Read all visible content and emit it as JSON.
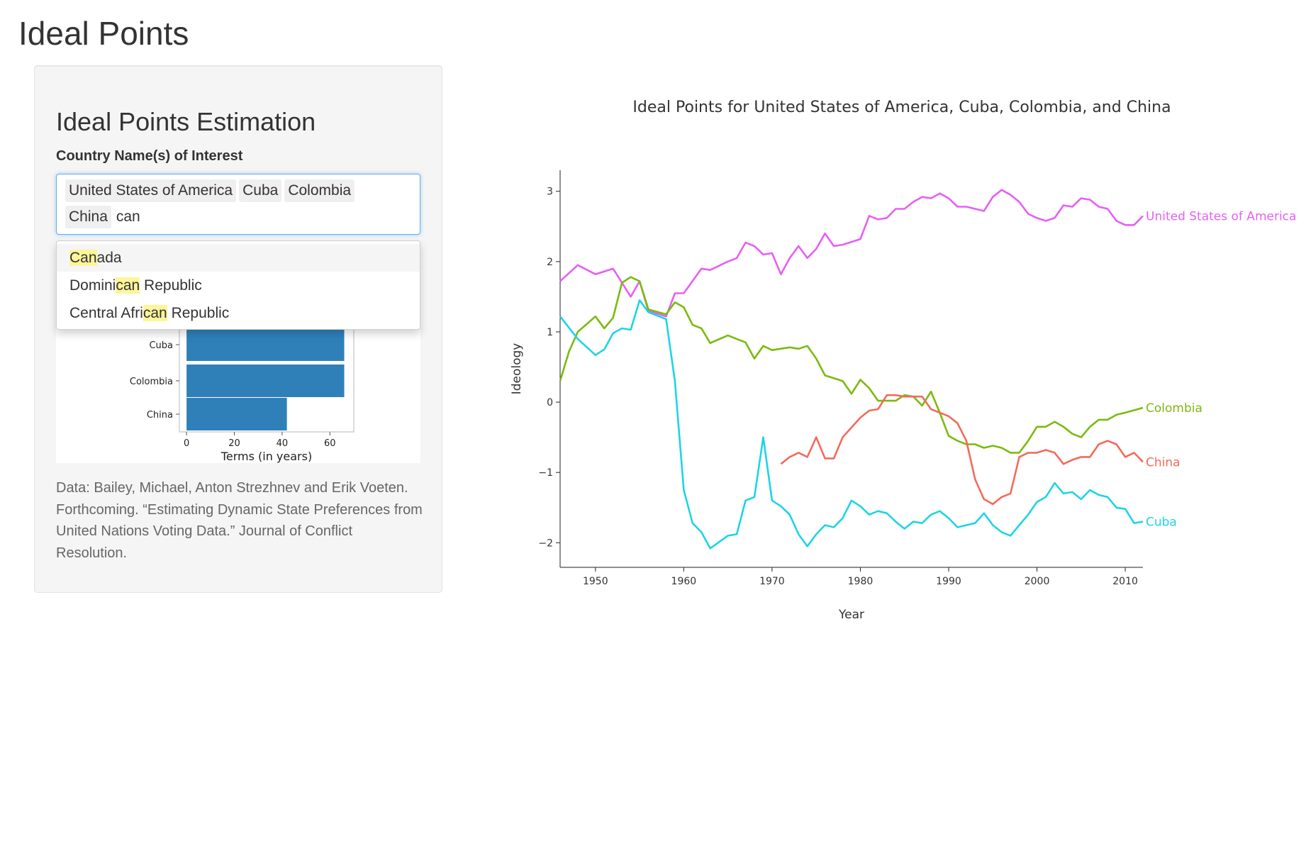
{
  "app": {
    "title": "Ideal Points"
  },
  "sidebar": {
    "title": "Ideal Points Estimation",
    "field_label": "Country Name(s) of Interest",
    "selected": [
      "United States of America",
      "Cuba",
      "Colombia",
      "China"
    ],
    "typed": "can",
    "suggestions": [
      {
        "pre": "",
        "match": "Can",
        "post": "ada"
      },
      {
        "pre": "Domini",
        "match": "can",
        "post": " Republic"
      },
      {
        "pre": "Central Afri",
        "match": "can",
        "post": " Republic"
      }
    ],
    "bar_chart": {
      "categories": [
        "Cuba",
        "Colombia",
        "China"
      ],
      "values": [
        66,
        66,
        42
      ],
      "xlim": [
        -3,
        70
      ],
      "xticks": [
        "0",
        "20",
        "40",
        "60"
      ],
      "xlabel": "Terms (in years)"
    },
    "source": "Data: Bailey, Michael, Anton Strezhnev and Erik Voeten. Forthcoming. “Estimating Dynamic State Preferences from United Nations Voting Data.” Journal of Conflict Resolution."
  },
  "chart_data": {
    "type": "line",
    "title": "Ideal Points for United States of America, Cuba, Colombia, and China",
    "xlabel": "Year",
    "ylabel": "Ideology",
    "xlim": [
      1946,
      2012
    ],
    "ylim": [
      -2.35,
      3.3
    ],
    "xticks": [
      "1950",
      "1960",
      "1970",
      "1980",
      "1990",
      "2000",
      "2010"
    ],
    "yticks": [
      "3",
      "2",
      "1",
      "0",
      "−1",
      "−2"
    ],
    "series": [
      {
        "name": "United States of America",
        "color": "#e75ff5",
        "x": [
          1946,
          1948,
          1950,
          1951,
          1952,
          1954,
          1955,
          1956,
          1958,
          1959,
          1960,
          1962,
          1963,
          1965,
          1966,
          1967,
          1968,
          1969,
          1970,
          1971,
          1972,
          1973,
          1974,
          1975,
          1976,
          1977,
          1978,
          1980,
          1981,
          1982,
          1983,
          1984,
          1985,
          1986,
          1987,
          1988,
          1989,
          1990,
          1991,
          1992,
          1993,
          1994,
          1995,
          1996,
          1997,
          1998,
          1999,
          2000,
          2001,
          2002,
          2003,
          2004,
          2005,
          2006,
          2007,
          2008,
          2009,
          2010,
          2011,
          2012
        ],
        "y": [
          1.72,
          1.95,
          1.82,
          1.86,
          1.9,
          1.5,
          1.72,
          1.3,
          1.22,
          1.55,
          1.55,
          1.9,
          1.88,
          2.0,
          2.05,
          2.27,
          2.22,
          2.1,
          2.12,
          1.82,
          2.05,
          2.22,
          2.05,
          2.18,
          2.4,
          2.22,
          2.24,
          2.32,
          2.65,
          2.6,
          2.62,
          2.75,
          2.75,
          2.85,
          2.92,
          2.9,
          2.97,
          2.9,
          2.78,
          2.78,
          2.75,
          2.72,
          2.92,
          3.02,
          2.95,
          2.85,
          2.68,
          2.62,
          2.58,
          2.62,
          2.8,
          2.78,
          2.9,
          2.88,
          2.78,
          2.75,
          2.58,
          2.52,
          2.52,
          2.65
        ]
      },
      {
        "name": "Colombia",
        "color": "#7cba0f",
        "x": [
          1946,
          1947,
          1948,
          1950,
          1951,
          1952,
          1953,
          1954,
          1955,
          1956,
          1958,
          1959,
          1960,
          1961,
          1962,
          1963,
          1965,
          1966,
          1967,
          1968,
          1969,
          1970,
          1972,
          1973,
          1974,
          1975,
          1976,
          1978,
          1979,
          1980,
          1981,
          1982,
          1984,
          1985,
          1986,
          1987,
          1988,
          1989,
          1990,
          1991,
          1992,
          1993,
          1994,
          1995,
          1996,
          1997,
          1998,
          1999,
          2000,
          2001,
          2002,
          2003,
          2004,
          2005,
          2006,
          2007,
          2008,
          2009,
          2010,
          2012
        ],
        "y": [
          0.3,
          0.72,
          1.0,
          1.22,
          1.05,
          1.2,
          1.7,
          1.78,
          1.72,
          1.32,
          1.25,
          1.42,
          1.35,
          1.1,
          1.05,
          0.84,
          0.95,
          0.9,
          0.85,
          0.62,
          0.8,
          0.74,
          0.78,
          0.76,
          0.8,
          0.62,
          0.38,
          0.3,
          0.12,
          0.32,
          0.2,
          0.02,
          0.02,
          0.1,
          0.08,
          -0.05,
          0.15,
          -0.15,
          -0.48,
          -0.55,
          -0.6,
          -0.6,
          -0.65,
          -0.62,
          -0.65,
          -0.72,
          -0.72,
          -0.55,
          -0.35,
          -0.35,
          -0.28,
          -0.35,
          -0.45,
          -0.5,
          -0.35,
          -0.25,
          -0.25,
          -0.18,
          -0.15,
          -0.08
        ]
      },
      {
        "name": "China",
        "color": "#f26b5b",
        "x": [
          1971,
          1972,
          1973,
          1974,
          1975,
          1976,
          1977,
          1978,
          1980,
          1981,
          1982,
          1983,
          1984,
          1985,
          1986,
          1987,
          1988,
          1989,
          1990,
          1991,
          1992,
          1993,
          1994,
          1995,
          1996,
          1997,
          1998,
          1999,
          2000,
          2001,
          2002,
          2003,
          2004,
          2005,
          2006,
          2007,
          2008,
          2009,
          2010,
          2011,
          2012
        ],
        "y": [
          -0.88,
          -0.78,
          -0.72,
          -0.78,
          -0.5,
          -0.8,
          -0.8,
          -0.5,
          -0.22,
          -0.12,
          -0.1,
          0.1,
          0.1,
          0.08,
          0.08,
          0.08,
          -0.1,
          -0.15,
          -0.2,
          -0.3,
          -0.55,
          -1.1,
          -1.38,
          -1.45,
          -1.35,
          -1.3,
          -0.78,
          -0.72,
          -0.72,
          -0.68,
          -0.72,
          -0.88,
          -0.82,
          -0.78,
          -0.78,
          -0.6,
          -0.55,
          -0.6,
          -0.78,
          -0.72,
          -0.85
        ]
      },
      {
        "name": "Cuba",
        "color": "#1ed4e6",
        "x": [
          1946,
          1948,
          1950,
          1951,
          1952,
          1953,
          1954,
          1955,
          1956,
          1958,
          1959,
          1960,
          1961,
          1962,
          1963,
          1965,
          1966,
          1967,
          1968,
          1969,
          1970,
          1971,
          1972,
          1973,
          1974,
          1975,
          1976,
          1977,
          1978,
          1979,
          1980,
          1981,
          1982,
          1983,
          1984,
          1985,
          1986,
          1987,
          1988,
          1989,
          1990,
          1991,
          1992,
          1993,
          1994,
          1995,
          1996,
          1997,
          1998,
          1999,
          2000,
          2001,
          2002,
          2003,
          2004,
          2005,
          2006,
          2007,
          2008,
          2009,
          2010,
          2011,
          2012
        ],
        "y": [
          1.22,
          0.9,
          0.67,
          0.75,
          0.98,
          1.05,
          1.03,
          1.45,
          1.28,
          1.18,
          0.3,
          -1.25,
          -1.72,
          -1.85,
          -2.08,
          -1.9,
          -1.88,
          -1.4,
          -1.35,
          -0.5,
          -1.4,
          -1.48,
          -1.6,
          -1.88,
          -2.05,
          -1.88,
          -1.75,
          -1.78,
          -1.65,
          -1.4,
          -1.48,
          -1.6,
          -1.55,
          -1.58,
          -1.7,
          -1.8,
          -1.7,
          -1.72,
          -1.6,
          -1.55,
          -1.65,
          -1.78,
          -1.75,
          -1.72,
          -1.58,
          -1.75,
          -1.85,
          -1.9,
          -1.75,
          -1.6,
          -1.42,
          -1.35,
          -1.15,
          -1.3,
          -1.28,
          -1.38,
          -1.25,
          -1.32,
          -1.35,
          -1.5,
          -1.52,
          -1.72,
          -1.7
        ]
      }
    ]
  }
}
